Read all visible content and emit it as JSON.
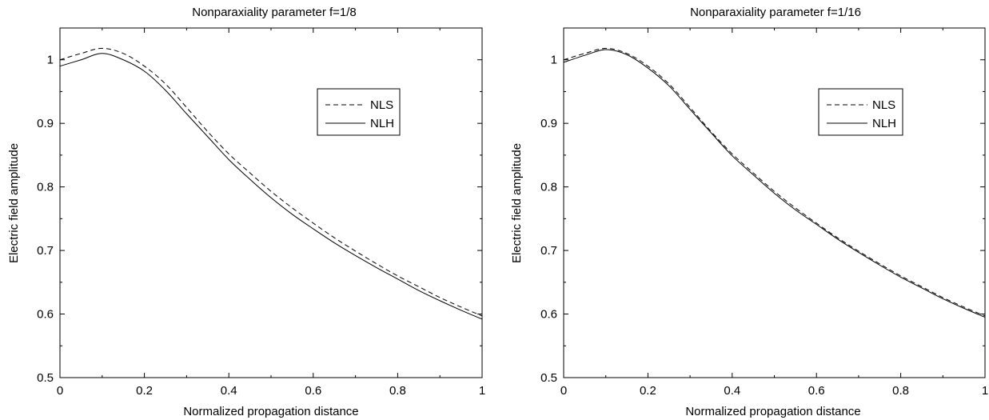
{
  "chart_data": [
    {
      "type": "line",
      "title": "Nonparaxiality parameter f=1/8",
      "xlabel": "Normalized propagation distance",
      "ylabel": "Electric field amplitude",
      "xlim": [
        0,
        1
      ],
      "ylim": [
        0.5,
        1.05
      ],
      "xticks": [
        0,
        0.2,
        0.4,
        0.6,
        0.8,
        1
      ],
      "xtick_labels": [
        "0",
        "0.2",
        "0.4",
        "0.6",
        "0.8",
        "1"
      ],
      "yticks": [
        0.5,
        0.6,
        0.7,
        0.8,
        0.9,
        1
      ],
      "ytick_labels": [
        "0.5",
        "0.6",
        "0.7",
        "0.8",
        "0.9",
        "1"
      ],
      "grid": false,
      "legend_position": "upper-right",
      "series": [
        {
          "name": "NLS",
          "style": "dashed",
          "x": [
            0,
            0.05,
            0.1,
            0.15,
            0.2,
            0.25,
            0.3,
            0.35,
            0.4,
            0.45,
            0.5,
            0.55,
            0.6,
            0.65,
            0.7,
            0.75,
            0.8,
            0.85,
            0.9,
            0.95,
            1
          ],
          "y": [
            1.0,
            1.01,
            1.018,
            1.01,
            0.99,
            0.962,
            0.925,
            0.887,
            0.852,
            0.822,
            0.793,
            0.767,
            0.743,
            0.72,
            0.699,
            0.679,
            0.66,
            0.643,
            0.626,
            0.611,
            0.597
          ]
        },
        {
          "name": "NLH",
          "style": "solid",
          "x": [
            0,
            0.05,
            0.1,
            0.15,
            0.2,
            0.25,
            0.3,
            0.35,
            0.4,
            0.45,
            0.5,
            0.55,
            0.6,
            0.65,
            0.7,
            0.75,
            0.8,
            0.85,
            0.9,
            0.95,
            1
          ],
          "y": [
            0.99,
            1.0,
            1.01,
            1.0,
            0.982,
            0.952,
            0.915,
            0.879,
            0.843,
            0.812,
            0.783,
            0.757,
            0.734,
            0.712,
            0.692,
            0.673,
            0.655,
            0.637,
            0.621,
            0.606,
            0.592
          ]
        }
      ]
    },
    {
      "type": "line",
      "title": "Nonparaxiality parameter f=1/16",
      "xlabel": "Normalized propagation distance",
      "ylabel": "Electric field amplitude",
      "xlim": [
        0,
        1
      ],
      "ylim": [
        0.5,
        1.05
      ],
      "xticks": [
        0,
        0.2,
        0.4,
        0.6,
        0.8,
        1
      ],
      "xtick_labels": [
        "0",
        "0.2",
        "0.4",
        "0.6",
        "0.8",
        "1"
      ],
      "yticks": [
        0.5,
        0.6,
        0.7,
        0.8,
        0.9,
        1
      ],
      "ytick_labels": [
        "0.5",
        "0.6",
        "0.7",
        "0.8",
        "0.9",
        "1"
      ],
      "grid": false,
      "legend_position": "upper-right",
      "series": [
        {
          "name": "NLS",
          "style": "dashed",
          "x": [
            0,
            0.05,
            0.1,
            0.15,
            0.2,
            0.25,
            0.3,
            0.35,
            0.4,
            0.45,
            0.5,
            0.55,
            0.6,
            0.65,
            0.7,
            0.75,
            0.8,
            0.85,
            0.9,
            0.95,
            1
          ],
          "y": [
            1.0,
            1.01,
            1.018,
            1.01,
            0.99,
            0.962,
            0.925,
            0.887,
            0.852,
            0.822,
            0.793,
            0.767,
            0.743,
            0.72,
            0.699,
            0.679,
            0.66,
            0.643,
            0.626,
            0.611,
            0.597
          ]
        },
        {
          "name": "NLH",
          "style": "solid",
          "x": [
            0,
            0.05,
            0.1,
            0.15,
            0.2,
            0.25,
            0.3,
            0.35,
            0.4,
            0.45,
            0.5,
            0.55,
            0.6,
            0.65,
            0.7,
            0.75,
            0.8,
            0.85,
            0.9,
            0.95,
            1
          ],
          "y": [
            0.996,
            1.007,
            1.016,
            1.008,
            0.987,
            0.959,
            0.922,
            0.885,
            0.849,
            0.819,
            0.79,
            0.764,
            0.741,
            0.718,
            0.697,
            0.677,
            0.658,
            0.641,
            0.624,
            0.609,
            0.595
          ]
        }
      ]
    }
  ]
}
